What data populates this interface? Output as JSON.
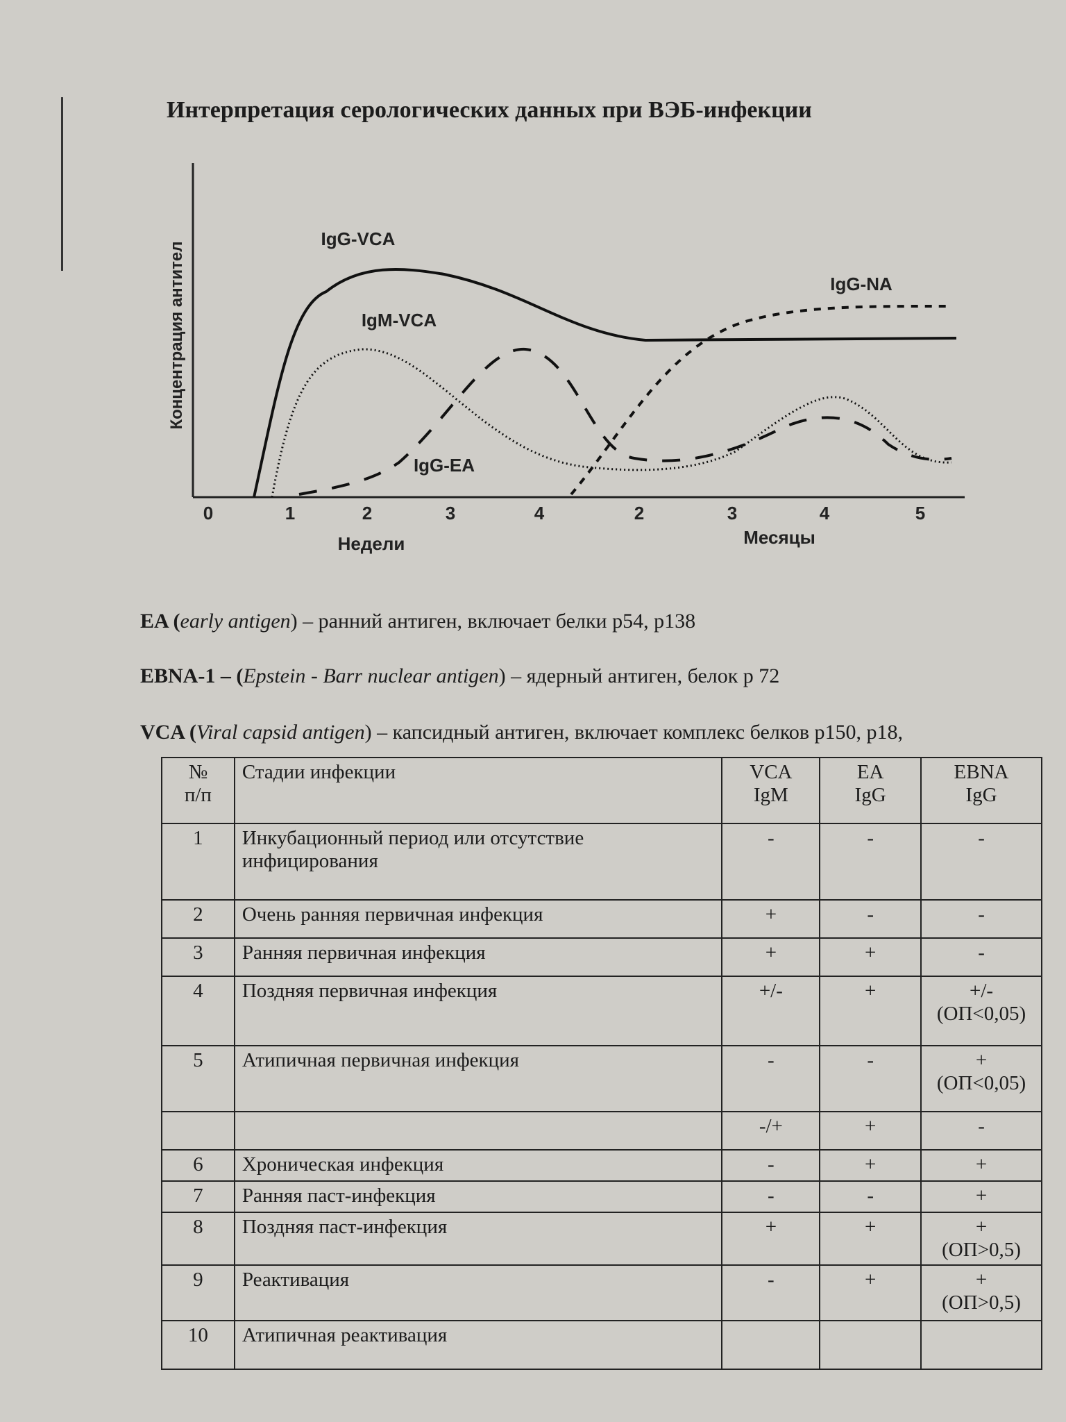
{
  "figure": {
    "title": "Интерпретация серологических данных при ВЭБ-инфекции",
    "y_label": "Концентрация антител",
    "curve_labels": [
      "IgG-VCA",
      "IgM-VCA",
      "IgG-EA",
      "IgG-NA"
    ],
    "weeks_ticks": [
      "0",
      "1",
      "2",
      "3",
      "4"
    ],
    "weeks_label": "Недели",
    "months_ticks": [
      "2",
      "3",
      "4",
      "5"
    ],
    "months_label": "Месяцы"
  },
  "definitions": [
    [
      "EA (",
      "early antigen",
      ") – ранний антиген, включает белки p54, p138"
    ],
    [
      "EBNA-1 – (",
      "Epstein - Barr nuclear antigen",
      ") – ядерный антиген, белок р 72"
    ],
    [
      "VCA (",
      "Viral capsid antigen",
      ") – капсидный антиген, включает комплекс белков р150, р18,"
    ]
  ],
  "table": {
    "header": [
      "№\nп/п",
      "Стадии инфекции",
      "VCA\nIgM",
      "EA\nIgG",
      "EBNA\nIgG"
    ],
    "rows": [
      [
        "1",
        "Инкубационный период или отсутствие инфицирования",
        "-",
        "-",
        "-"
      ],
      [
        "2",
        "Очень ранняя первичная инфекция",
        "+",
        "-",
        "-"
      ],
      [
        "3",
        "Ранняя первичная инфекция",
        "+",
        "+",
        "-"
      ],
      [
        "4",
        "Поздняя первичная инфекция",
        "+/-",
        "+",
        "+/-\n(ОП<0,05)"
      ],
      [
        "5",
        "Атипичная первичная инфекция",
        "-",
        "-",
        "+\n(ОП<0,05)"
      ],
      [
        null,
        null,
        "-/+",
        "+",
        "-"
      ],
      [
        "6",
        "Хроническая инфекция",
        "-",
        "+",
        "+"
      ],
      [
        "7",
        "Ранняя паст-инфекция",
        "-",
        "-",
        "+"
      ],
      [
        "8",
        "Поздняя паст-инфекция",
        "+",
        "+",
        "+\n(ОП>0,5)"
      ],
      [
        "9",
        "Реактивация",
        "-",
        "+",
        "+\n(ОП>0,5)"
      ],
      [
        "10",
        "Атипичная реактивация",
        null,
        null,
        null
      ]
    ]
  }
}
